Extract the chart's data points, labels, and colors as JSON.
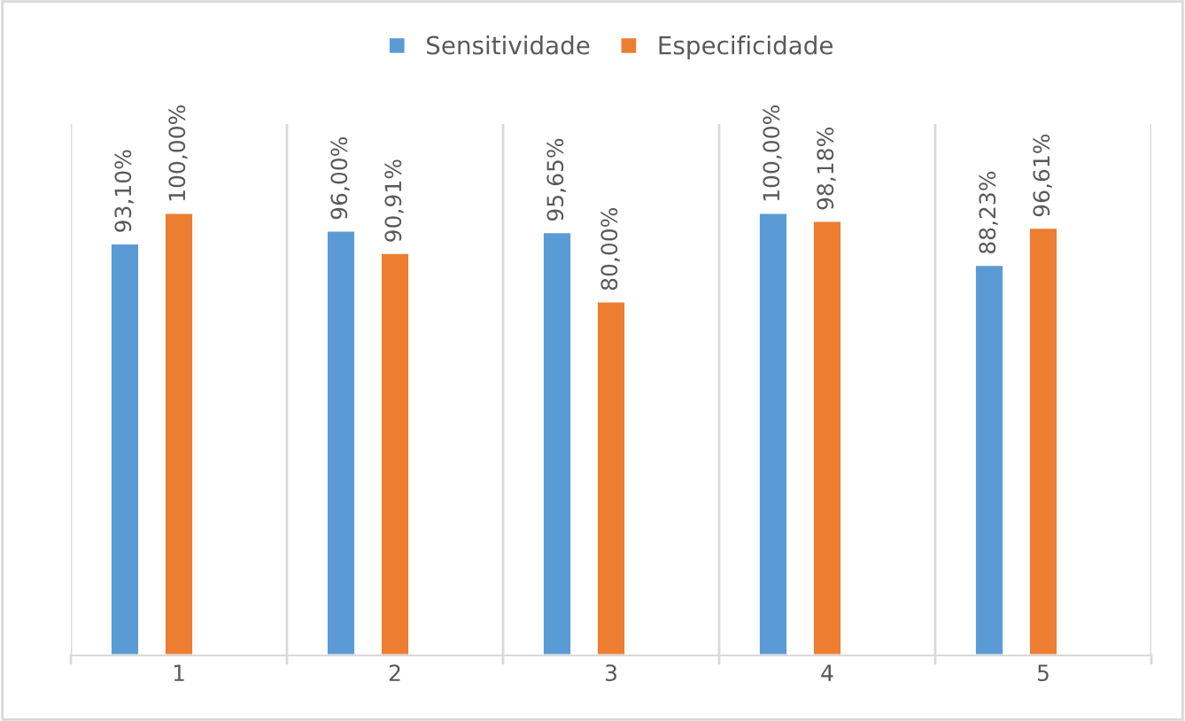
{
  "chart_data": {
    "type": "bar",
    "categories": [
      "1",
      "2",
      "3",
      "4",
      "5"
    ],
    "series": [
      {
        "name": "Sensitividade",
        "color": "#5b9bd5",
        "values": [
          93.1,
          96.0,
          95.65,
          100.0,
          88.23
        ],
        "value_labels": [
          "93,10%",
          "96,00%",
          "95,65%",
          "100,00%",
          "88,23%"
        ]
      },
      {
        "name": "Especificidade",
        "color": "#ed7d31",
        "values": [
          100.0,
          90.91,
          80.0,
          98.18,
          96.61
        ],
        "value_labels": [
          "100,00%",
          "90,91%",
          "80,00%",
          "98,18%",
          "96,61%"
        ]
      }
    ],
    "ylim": [
      0,
      120
    ],
    "tick_labels": "x",
    "grid": "x",
    "legend": "top"
  }
}
